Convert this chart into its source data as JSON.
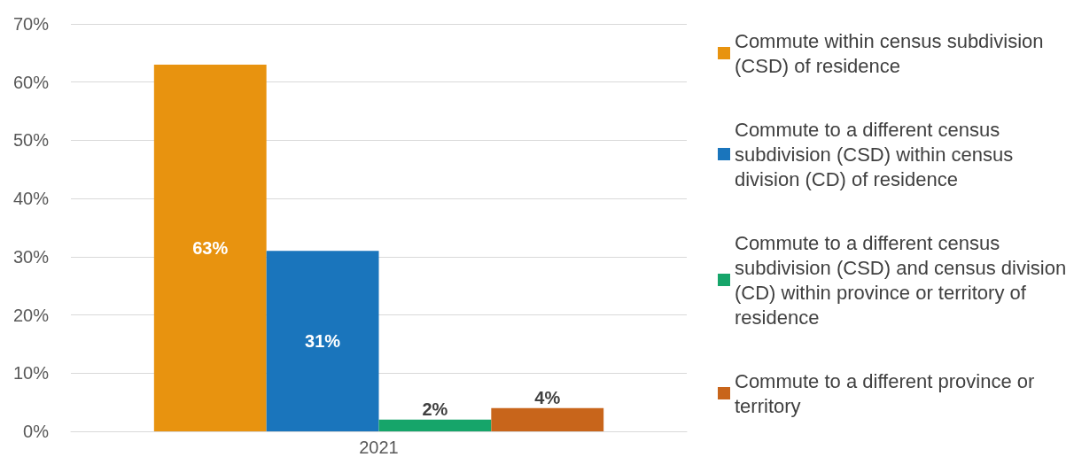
{
  "chart_data": {
    "type": "bar",
    "categories": [
      "2021"
    ],
    "series": [
      {
        "name": "Commute within census subdivision (CSD) of residence",
        "color": "#e8930f",
        "values": [
          63
        ],
        "value_labels": [
          "63%"
        ]
      },
      {
        "name": "Commute to a different census subdivision (CSD) within census division (CD) of residence",
        "color": "#1a75bc",
        "values": [
          31
        ],
        "value_labels": [
          "31%"
        ]
      },
      {
        "name": "Commute to a different census subdivision (CSD) and census division (CD) within province or territory of residence",
        "color": "#16a56a",
        "values": [
          2
        ],
        "value_labels": [
          "2%"
        ]
      },
      {
        "name": "Commute to a different province or territory",
        "color": "#c8651b",
        "values": [
          4
        ],
        "value_labels": [
          "4%"
        ]
      }
    ],
    "ylim": [
      0,
      70
    ],
    "yticks": [
      {
        "value": 0,
        "label": "0%"
      },
      {
        "value": 10,
        "label": "10%"
      },
      {
        "value": 20,
        "label": "20%"
      },
      {
        "value": 30,
        "label": "30%"
      },
      {
        "value": 40,
        "label": "40%"
      },
      {
        "value": 50,
        "label": "50%"
      },
      {
        "value": 60,
        "label": "60%"
      },
      {
        "value": 70,
        "label": "70%"
      }
    ],
    "grid": "y",
    "legend": "right"
  }
}
